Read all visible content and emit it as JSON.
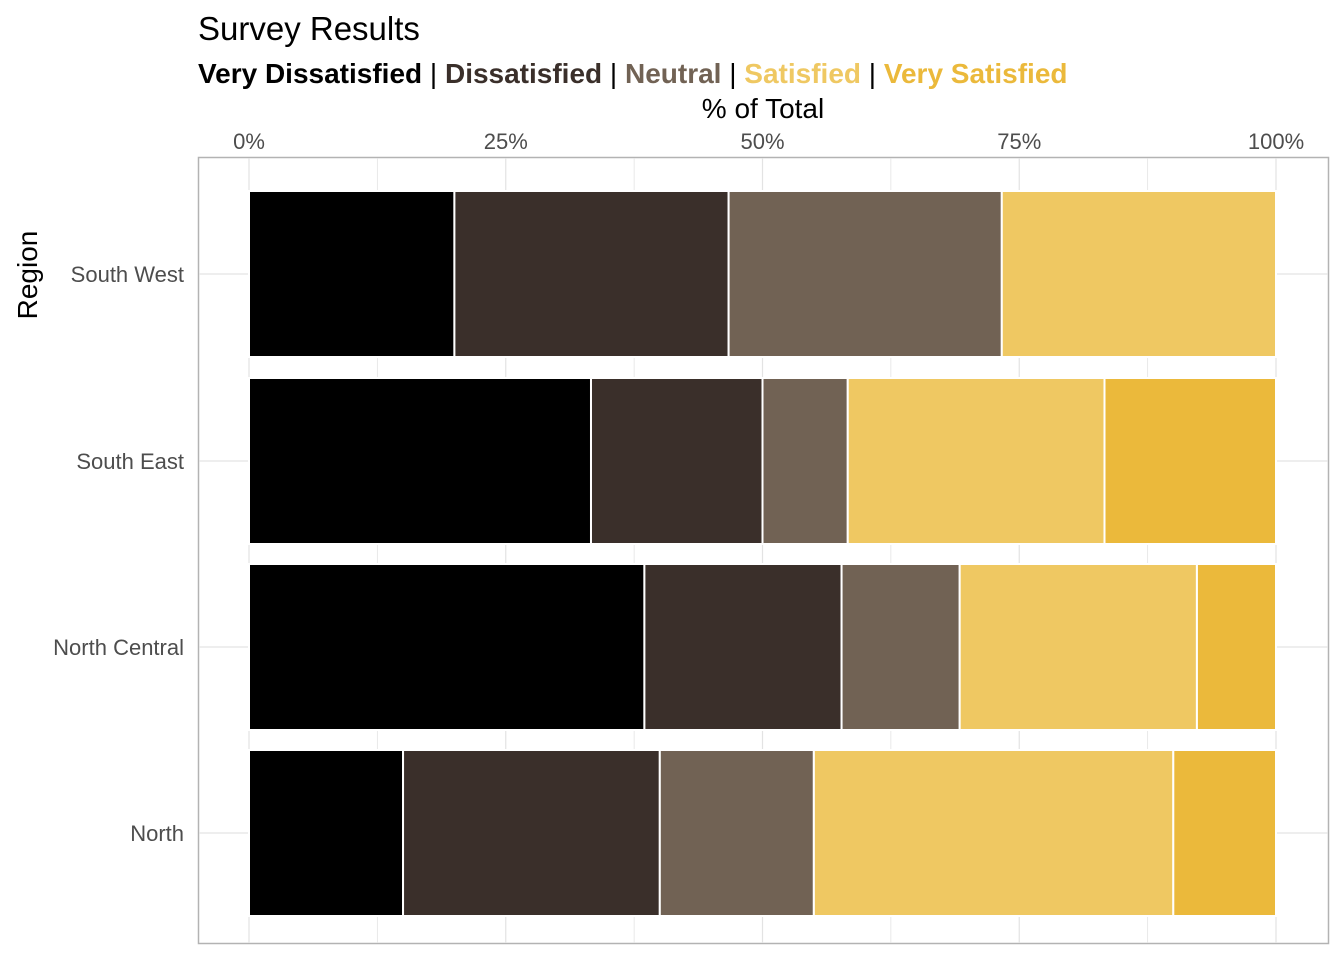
{
  "chart_data": {
    "type": "bar",
    "orientation": "horizontal",
    "stacked": "percent",
    "title": "Survey Results",
    "xlabel": "% of Total",
    "ylabel": "Region",
    "xaxis_position": "top",
    "xlim": [
      0,
      100
    ],
    "x_ticks": [
      "0%",
      "25%",
      "50%",
      "75%",
      "100%"
    ],
    "categories": [
      "South West",
      "South East",
      "North Central",
      "North"
    ],
    "series": [
      {
        "name": "Very Dissatisfied",
        "color": "#000000",
        "values": [
          20,
          33.3,
          38.5,
          15
        ]
      },
      {
        "name": "Dissatisfied",
        "color": "#3a2f2a",
        "values": [
          26.7,
          16.7,
          19.2,
          25
        ]
      },
      {
        "name": "Neutral",
        "color": "#716254",
        "values": [
          26.6,
          8.3,
          11.5,
          15
        ]
      },
      {
        "name": "Satisfied",
        "color": "#efc862",
        "values": [
          26.7,
          25,
          23.1,
          35
        ]
      },
      {
        "name": "Very Satisfied",
        "color": "#ebb93b",
        "values": [
          0,
          16.7,
          7.7,
          10
        ]
      }
    ],
    "legend": "subtitle",
    "grid": true
  }
}
